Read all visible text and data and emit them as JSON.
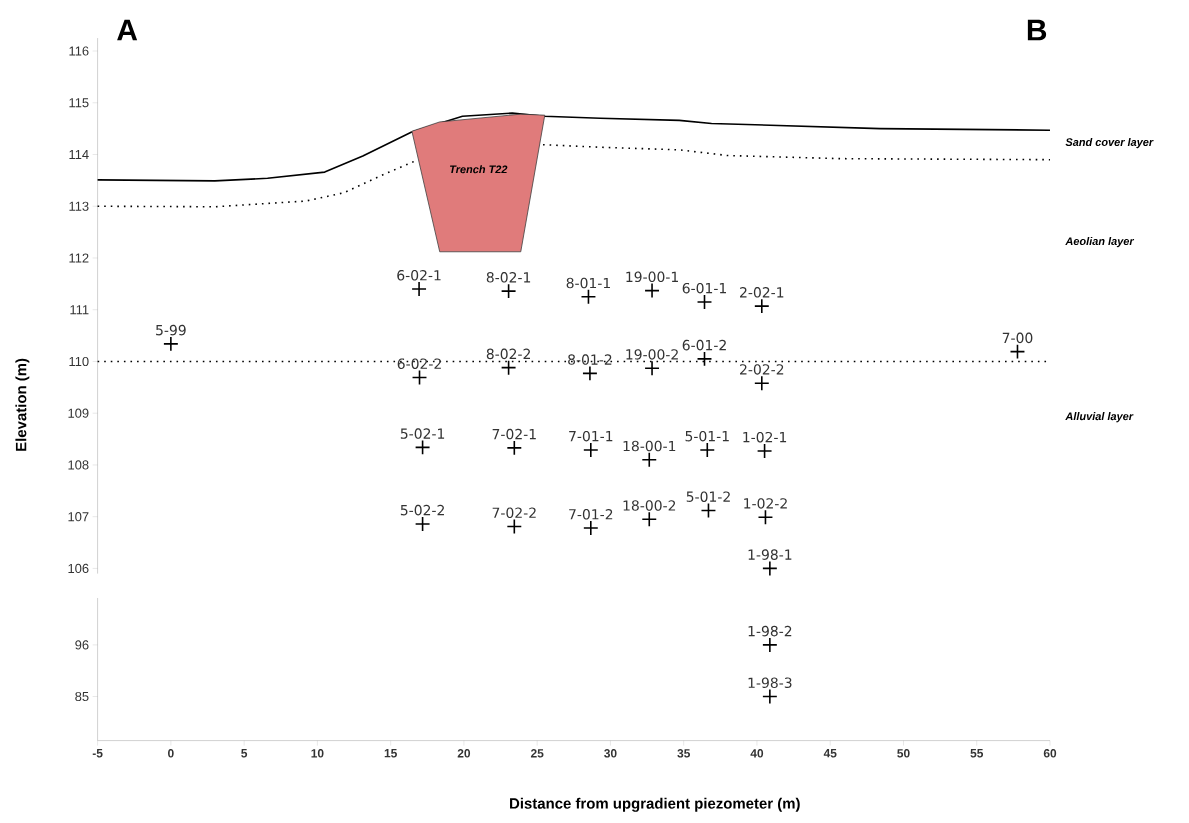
{
  "chart_data": [
    {
      "type": "line",
      "ylabel": "Elevation (m)",
      "xlim": [
        -5,
        60
      ],
      "ylim": [
        105.9,
        116.25
      ],
      "yticks": [
        106,
        107,
        108,
        109,
        110,
        111,
        112,
        113,
        114,
        115,
        116
      ],
      "tick_labels": "y",
      "series": [
        {
          "color": "#000000",
          "line_style": "solid",
          "x": [
            -5,
            3.0,
            6.6,
            10.5,
            13.1,
            16.4,
            19.9,
            23.3,
            25.5,
            29.3,
            34.7,
            36.9,
            48.4,
            60
          ],
          "values": [
            113.51,
            113.49,
            113.54,
            113.66,
            113.97,
            114.43,
            114.74,
            114.8,
            114.74,
            114.7,
            114.66,
            114.6,
            114.5,
            114.47
          ]
        },
        {
          "color": "#000000",
          "line_style": "dotted",
          "x": [
            -5,
            3.0,
            9.2,
            11.8,
            14.4,
            16.8,
            21,
            25.4,
            29.3,
            34.7,
            38.0,
            45.7,
            60
          ],
          "values": [
            113.0,
            112.99,
            113.1,
            113.26,
            113.6,
            113.89,
            null,
            114.19,
            114.14,
            114.09,
            113.98,
            113.92,
            113.9
          ]
        },
        {
          "type": "area",
          "name": "Trench T22",
          "color": "#e07b7b",
          "x": [
            16.45,
            18.35,
            23.88,
            25.52,
            23.88,
            18.35,
            16.45
          ],
          "values": [
            114.45,
            114.63,
            114.78,
            114.76,
            112.12,
            112.12,
            114.45
          ]
        },
        {
          "type": "scatter",
          "color": "#000000",
          "marker": "cross",
          "x": [
            0,
            16.94,
            23.05,
            28.5,
            32.84,
            36.42,
            40.33,
            16.97,
            23.05,
            28.6,
            32.84,
            36.42,
            40.33,
            57.78,
            17.18,
            23.44,
            28.66,
            32.65,
            36.61,
            40.52,
            17.18,
            23.44,
            28.66,
            32.65,
            36.69,
            40.58,
            40.88
          ],
          "values": [
            110.34,
            111.4,
            111.36,
            111.25,
            111.37,
            111.15,
            111.07,
            109.69,
            109.88,
            109.77,
            109.87,
            110.05,
            109.58,
            110.19,
            108.34,
            108.33,
            108.29,
            108.1,
            108.29,
            108.27,
            106.86,
            106.81,
            106.78,
            106.95,
            107.12,
            106.99,
            106.0
          ]
        }
      ],
      "ref_lines": [
        {
          "axis": "y",
          "value": 110,
          "color": "#000000",
          "line_style": "dotted"
        }
      ],
      "annotations": [
        "A",
        "B",
        "Sand cover layer",
        "Aeolian layer",
        "Alluvial layer",
        {
          "text": "5-99",
          "x": 0,
          "y": 110.34
        },
        {
          "text": "6-02-1",
          "x": 16.94,
          "y": 111.4
        },
        {
          "text": "8-02-1",
          "x": 23.05,
          "y": 111.36
        },
        {
          "text": "8-01-1",
          "x": 28.5,
          "y": 111.25
        },
        {
          "text": "19-00-1",
          "x": 32.84,
          "y": 111.37
        },
        {
          "text": "6-01-1",
          "x": 36.42,
          "y": 111.15
        },
        {
          "text": "2-02-1",
          "x": 40.33,
          "y": 111.07
        },
        {
          "text": "6-02-2",
          "x": 16.97,
          "y": 109.69
        },
        {
          "text": "8-02-2",
          "x": 23.05,
          "y": 109.88
        },
        {
          "text": "8-01-2",
          "x": 28.6,
          "y": 109.77
        },
        {
          "text": "19-00-2",
          "x": 32.84,
          "y": 109.87
        },
        {
          "text": "6-01-2",
          "x": 36.42,
          "y": 110.05
        },
        {
          "text": "2-02-2",
          "x": 40.33,
          "y": 109.58
        },
        {
          "text": "7-00",
          "x": 57.78,
          "y": 110.19
        },
        {
          "text": "5-02-1",
          "x": 17.18,
          "y": 108.34
        },
        {
          "text": "7-02-1",
          "x": 23.44,
          "y": 108.33
        },
        {
          "text": "7-01-1",
          "x": 28.66,
          "y": 108.29
        },
        {
          "text": "18-00-1",
          "x": 32.65,
          "y": 108.1
        },
        {
          "text": "5-01-1",
          "x": 36.61,
          "y": 108.29
        },
        {
          "text": "1-02-1",
          "x": 40.52,
          "y": 108.27
        },
        {
          "text": "5-02-2",
          "x": 17.18,
          "y": 106.86
        },
        {
          "text": "7-02-2",
          "x": 23.44,
          "y": 106.81
        },
        {
          "text": "7-01-2",
          "x": 28.66,
          "y": 106.78
        },
        {
          "text": "18-00-2",
          "x": 32.65,
          "y": 106.95
        },
        {
          "text": "5-01-2",
          "x": 36.69,
          "y": 107.12
        },
        {
          "text": "1-02-2",
          "x": 40.58,
          "y": 106.99
        },
        {
          "text": "1-98-1",
          "x": 40.88,
          "y": 106.0
        }
      ]
    },
    {
      "type": "scatter",
      "xlabel": "Distance from upgradient piezometer (m)",
      "xlim": [
        -5,
        60
      ],
      "xticks": [
        -5,
        0,
        5,
        10,
        15,
        20,
        25,
        30,
        35,
        40,
        45,
        50,
        55,
        60
      ],
      "ylim": [
        75.6,
        106
      ],
      "yticks": [
        85,
        96
      ],
      "series": [
        {
          "color": "#000000",
          "marker": "cross",
          "x": [
            40.88,
            40.88
          ],
          "values": [
            96,
            85
          ]
        }
      ],
      "annotations": [
        {
          "text": "1-98-2",
          "x": 40.88,
          "y": 96
        },
        {
          "text": "1-98-3",
          "x": 40.88,
          "y": 85
        }
      ]
    }
  ]
}
